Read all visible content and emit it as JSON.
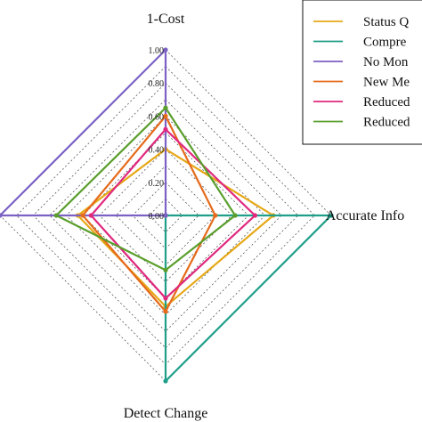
{
  "chart_data": {
    "type": "radar",
    "axes": [
      "1-Cost",
      "Accurate Info",
      "Detect Change",
      ""
    ],
    "ticks": [
      "0.00",
      "0.20",
      "0.40",
      "0.60",
      "0.80",
      "1.00"
    ],
    "rlim": [
      0,
      1
    ],
    "grid": true,
    "legend_position": "top-right",
    "series": [
      {
        "name": "Status Q",
        "color": "#e6a817",
        "values": [
          0.4,
          0.65,
          0.55,
          0.53
        ]
      },
      {
        "name": "Compre",
        "color": "#1f9e89",
        "values": [
          0.0,
          1.0,
          1.0,
          0.0
        ]
      },
      {
        "name": "No Mon",
        "color": "#7b61c4",
        "values": [
          1.0,
          0.0,
          0.0,
          1.0
        ]
      },
      {
        "name": "New Me",
        "color": "#e66a1a",
        "values": [
          0.6,
          0.3,
          0.58,
          0.5
        ]
      },
      {
        "name": "Reduced",
        "color": "#e0287f",
        "values": [
          0.52,
          0.54,
          0.5,
          0.45
        ]
      },
      {
        "name": "Reduced",
        "color": "#5a9e2c",
        "values": [
          0.65,
          0.42,
          0.33,
          0.66
        ]
      }
    ]
  }
}
